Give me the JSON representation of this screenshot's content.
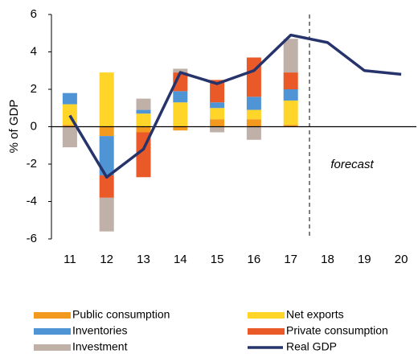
{
  "chart_data": {
    "type": "bar",
    "stacked": true,
    "y_label": "% of GDP",
    "annotation": "forecast",
    "categories": [
      "11",
      "12",
      "13",
      "14",
      "15",
      "16",
      "17",
      "18",
      "19",
      "20"
    ],
    "series": [
      {
        "name": "Public consumption",
        "color": "#f39a1e",
        "type": "bar",
        "values": [
          0.1,
          -0.5,
          -0.3,
          -0.2,
          0.4,
          0.4,
          0.1,
          null,
          null,
          null
        ]
      },
      {
        "name": "Net exports",
        "color": "#ffd52a",
        "type": "bar",
        "values": [
          1.1,
          2.9,
          0.7,
          1.3,
          0.6,
          0.5,
          1.3,
          null,
          null,
          null
        ]
      },
      {
        "name": "Inventories",
        "color": "#4f94d4",
        "type": "bar",
        "values": [
          0.6,
          -2.1,
          0.2,
          0.6,
          0.3,
          0.7,
          0.6,
          null,
          null,
          null
        ]
      },
      {
        "name": "Private consumption",
        "color": "#ea5a28",
        "type": "bar",
        "values": [
          0,
          -1.2,
          -2.4,
          1.0,
          1.2,
          2.1,
          0.9,
          null,
          null,
          null
        ]
      },
      {
        "name": "Investment",
        "color": "#bfb0a8",
        "type": "bar",
        "values": [
          -1.1,
          -1.8,
          0.6,
          0.2,
          -0.3,
          -0.7,
          1.8,
          null,
          null,
          null
        ]
      },
      {
        "name": "Real GDP",
        "color": "#27336b",
        "type": "line",
        "values": [
          0.6,
          -2.7,
          -1.2,
          2.9,
          2.3,
          3.0,
          4.9,
          4.5,
          3.0,
          2.8
        ]
      }
    ],
    "ylim": [
      -6,
      6
    ],
    "yticks": [
      -6,
      -4,
      -2,
      0,
      2,
      4,
      6
    ],
    "grid": false
  }
}
